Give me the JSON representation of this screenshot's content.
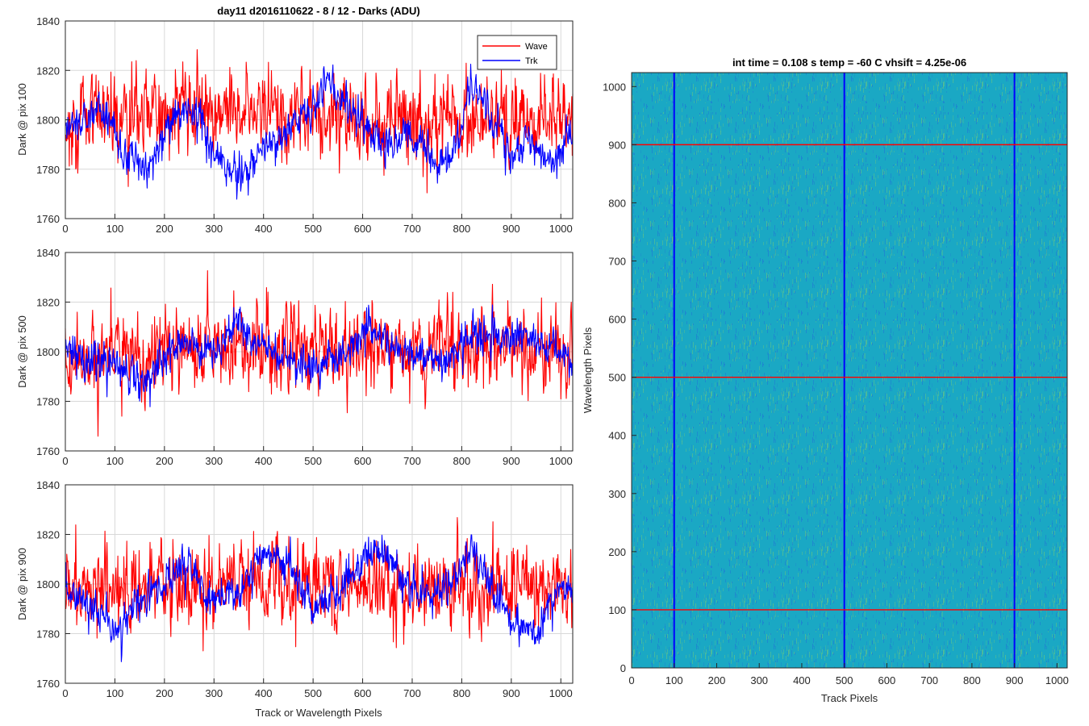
{
  "colors": {
    "wave": "#ff0000",
    "trk": "#0000ff",
    "grid": "#d8d8d8",
    "axis": "#262626",
    "heat_base": "#1aa8c4",
    "heat_low": "#1f77d4",
    "heat_high": "#5fc28a"
  },
  "chart_data": [
    {
      "type": "line",
      "title": "day11 d2016110622 - 8 / 12 - Darks (ADU)",
      "xlabel": "",
      "ylabel": "Dark @ pix 100",
      "xlim": [
        0,
        1024
      ],
      "ylim": [
        1760,
        1840
      ],
      "xticks": [
        "0",
        "100",
        "200",
        "300",
        "400",
        "500",
        "600",
        "700",
        "800",
        "900",
        "1000"
      ],
      "yticks": [
        "1760",
        "1780",
        "1800",
        "1820",
        "1840"
      ],
      "grid": true,
      "legend": "top-right",
      "series": [
        {
          "name": "Wave",
          "color": "#ff0000",
          "mean": 1800,
          "noise": 8,
          "trend_points": [
            [
              0,
              1800
            ],
            [
              256,
              1805
            ],
            [
              512,
              1800
            ],
            [
              768,
              1800
            ],
            [
              1024,
              1802
            ]
          ]
        },
        {
          "name": "Trk",
          "color": "#0000ff",
          "mean": 1795,
          "noise": 4,
          "trend_points": [
            [
              0,
              1795
            ],
            [
              30,
              1800
            ],
            [
              60,
              1805
            ],
            [
              90,
              1800
            ],
            [
              120,
              1786
            ],
            [
              160,
              1778
            ],
            [
              200,
              1795
            ],
            [
              240,
              1805
            ],
            [
              270,
              1803
            ],
            [
              300,
              1785
            ],
            [
              350,
              1778
            ],
            [
              400,
              1788
            ],
            [
              450,
              1796
            ],
            [
              500,
              1805
            ],
            [
              530,
              1818
            ],
            [
              570,
              1805
            ],
            [
              610,
              1796
            ],
            [
              650,
              1790
            ],
            [
              700,
              1795
            ],
            [
              740,
              1782
            ],
            [
              780,
              1785
            ],
            [
              820,
              1815
            ],
            [
              860,
              1800
            ],
            [
              900,
              1786
            ],
            [
              940,
              1790
            ],
            [
              980,
              1782
            ],
            [
              1024,
              1795
            ]
          ]
        }
      ]
    },
    {
      "type": "line",
      "title": "",
      "xlabel": "",
      "ylabel": "Dark @ pix 500",
      "xlim": [
        0,
        1024
      ],
      "ylim": [
        1760,
        1840
      ],
      "xticks": [
        "0",
        "100",
        "200",
        "300",
        "400",
        "500",
        "600",
        "700",
        "800",
        "900",
        "1000"
      ],
      "yticks": [
        "1760",
        "1780",
        "1800",
        "1820",
        "1840"
      ],
      "grid": true,
      "series": [
        {
          "name": "",
          "color": "#ff0000",
          "mean": 1800,
          "noise": 8,
          "trend_points": [
            [
              0,
              1797
            ],
            [
              256,
              1800
            ],
            [
              512,
              1800
            ],
            [
              768,
              1802
            ],
            [
              1024,
              1800
            ]
          ]
        },
        {
          "name": "",
          "color": "#0000ff",
          "mean": 1800,
          "noise": 4,
          "trend_points": [
            [
              0,
              1800
            ],
            [
              60,
              1798
            ],
            [
              120,
              1795
            ],
            [
              160,
              1786
            ],
            [
              200,
              1798
            ],
            [
              250,
              1805
            ],
            [
              300,
              1800
            ],
            [
              350,
              1812
            ],
            [
              400,
              1800
            ],
            [
              450,
              1797
            ],
            [
              500,
              1793
            ],
            [
              560,
              1798
            ],
            [
              620,
              1812
            ],
            [
              650,
              1805
            ],
            [
              700,
              1800
            ],
            [
              760,
              1796
            ],
            [
              820,
              1808
            ],
            [
              870,
              1806
            ],
            [
              920,
              1808
            ],
            [
              970,
              1802
            ],
            [
              1024,
              1796
            ]
          ]
        }
      ]
    },
    {
      "type": "line",
      "title": "",
      "xlabel": "Track or Wavelength Pixels",
      "ylabel": "Dark @ pix 900",
      "xlim": [
        0,
        1024
      ],
      "ylim": [
        1760,
        1840
      ],
      "xticks": [
        "0",
        "100",
        "200",
        "300",
        "400",
        "500",
        "600",
        "700",
        "800",
        "900",
        "1000"
      ],
      "yticks": [
        "1760",
        "1780",
        "1800",
        "1820",
        "1840"
      ],
      "grid": true,
      "series": [
        {
          "name": "",
          "color": "#ff0000",
          "mean": 1800,
          "noise": 8,
          "trend_points": [
            [
              0,
              1799
            ],
            [
              256,
              1800
            ],
            [
              512,
              1798
            ],
            [
              768,
              1800
            ],
            [
              1024,
              1800
            ]
          ]
        },
        {
          "name": "",
          "color": "#0000ff",
          "mean": 1795,
          "noise": 4,
          "trend_points": [
            [
              0,
              1800
            ],
            [
              60,
              1788
            ],
            [
              100,
              1780
            ],
            [
              150,
              1793
            ],
            [
              200,
              1800
            ],
            [
              250,
              1808
            ],
            [
              300,
              1792
            ],
            [
              350,
              1798
            ],
            [
              400,
              1812
            ],
            [
              450,
              1808
            ],
            [
              500,
              1790
            ],
            [
              560,
              1800
            ],
            [
              620,
              1815
            ],
            [
              660,
              1810
            ],
            [
              700,
              1795
            ],
            [
              760,
              1798
            ],
            [
              820,
              1812
            ],
            [
              860,
              1800
            ],
            [
              900,
              1786
            ],
            [
              950,
              1780
            ],
            [
              1000,
              1800
            ],
            [
              1024,
              1800
            ]
          ]
        }
      ]
    },
    {
      "type": "heatmap",
      "title": "int time = 0.108 s   temp = -60 C   vhsift = 4.25e-06",
      "xlabel": "Track Pixels",
      "ylabel": "Wavelength Pixels",
      "xlim": [
        0,
        1024
      ],
      "ylim": [
        0,
        1024
      ],
      "xticks": [
        "0",
        "100",
        "200",
        "300",
        "400",
        "500",
        "600",
        "700",
        "800",
        "900",
        "1000"
      ],
      "yticks": [
        "0",
        "100",
        "200",
        "300",
        "400",
        "500",
        "600",
        "700",
        "800",
        "900",
        "1000"
      ],
      "vertical_markers": {
        "color": "#0000ff",
        "x": [
          100,
          500,
          900
        ]
      },
      "horizontal_markers": {
        "color": "#ff0000",
        "y": [
          100,
          500,
          900
        ]
      }
    }
  ]
}
